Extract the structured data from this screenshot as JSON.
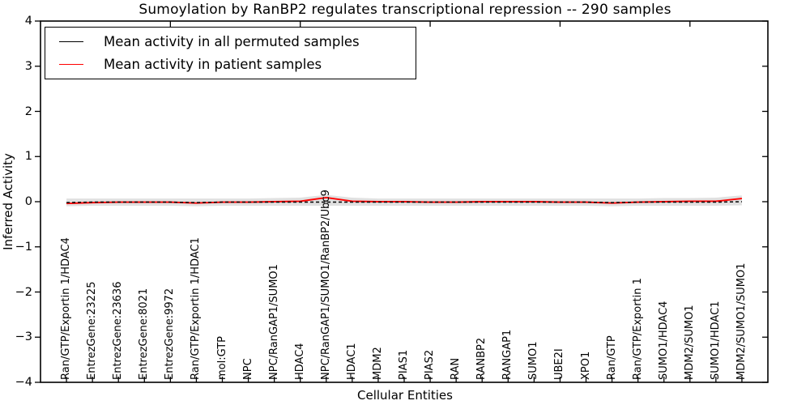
{
  "chart_data": {
    "type": "line",
    "title": "Sumoylation by RanBP2 regulates transcriptional repression -- 290 samples",
    "xlabel": "Cellular Entities",
    "ylabel": "Inferred Activity",
    "ylim": [
      -4,
      4
    ],
    "ytick_values": [
      4,
      3,
      2,
      1,
      0,
      -1,
      -2,
      -3,
      -4
    ],
    "ytick_labels": [
      "4",
      "3",
      "2",
      "1",
      "0",
      "−1",
      "−2",
      "−3",
      "−4"
    ],
    "x_major_ticks": [
      5,
      10,
      15,
      20,
      25
    ],
    "legend_position": "upper left",
    "grid": false,
    "categories": [
      "Ran/GTP/Exportin 1/HDAC4",
      "EntrezGene:23225",
      "EntrezGene:23636",
      "EntrezGene:8021",
      "EntrezGene:9972",
      "Ran/GTP/Exportin 1/HDAC1",
      "mol:GTP",
      "NPC",
      "NPC/RanGAP1/SUMO1",
      "HDAC4",
      "NPC/RanGAP1/SUMO1/RanBP2/Ubc9",
      "HDAC1",
      "MDM2",
      "PIAS1",
      "PIAS2",
      "RAN",
      "RANBP2",
      "RANGAP1",
      "SUMO1",
      "UBE2I",
      "XPO1",
      "Ran/GTP",
      "Ran/GTP/Exportin 1",
      "SUMO1/HDAC4",
      "MDM2/SUMO1",
      "SUMO1/HDAC1",
      "MDM2/SUMO1/SUMO1"
    ],
    "series": [
      {
        "name": "Mean activity in all permuted samples",
        "color": "#000000",
        "linestyle": "dashed",
        "values": [
          -0.02,
          -0.01,
          -0.01,
          -0.01,
          -0.01,
          -0.02,
          -0.01,
          -0.01,
          -0.01,
          -0.01,
          -0.01,
          -0.01,
          -0.01,
          -0.01,
          -0.01,
          -0.01,
          -0.01,
          -0.01,
          -0.01,
          -0.01,
          -0.01,
          -0.02,
          -0.01,
          -0.01,
          -0.01,
          -0.01,
          0.0
        ]
      },
      {
        "name": "Mean activity in patient samples",
        "color": "#ff0000",
        "linestyle": "solid",
        "values": [
          -0.04,
          -0.02,
          -0.01,
          -0.01,
          -0.01,
          -0.03,
          -0.01,
          -0.01,
          0.0,
          0.01,
          0.09,
          0.01,
          0.0,
          0.0,
          -0.01,
          -0.01,
          0.0,
          0.0,
          0.0,
          -0.01,
          -0.01,
          -0.03,
          -0.01,
          0.0,
          0.01,
          0.01,
          0.07
        ]
      }
    ],
    "band": {
      "name": "permuted-samples-spread",
      "color": "#d3d3d3",
      "upper": [
        0.07,
        0.07,
        0.07,
        0.07,
        0.07,
        0.07,
        0.07,
        0.07,
        0.08,
        0.09,
        0.15,
        0.09,
        0.07,
        0.07,
        0.07,
        0.07,
        0.07,
        0.07,
        0.07,
        0.07,
        0.07,
        0.07,
        0.07,
        0.08,
        0.08,
        0.09,
        0.14
      ],
      "lower": [
        -0.1,
        -0.09,
        -0.09,
        -0.09,
        -0.09,
        -0.1,
        -0.09,
        -0.09,
        -0.09,
        -0.09,
        -0.09,
        -0.09,
        -0.09,
        -0.09,
        -0.09,
        -0.09,
        -0.09,
        -0.09,
        -0.09,
        -0.09,
        -0.09,
        -0.1,
        -0.09,
        -0.09,
        -0.09,
        -0.09,
        -0.08
      ]
    }
  }
}
